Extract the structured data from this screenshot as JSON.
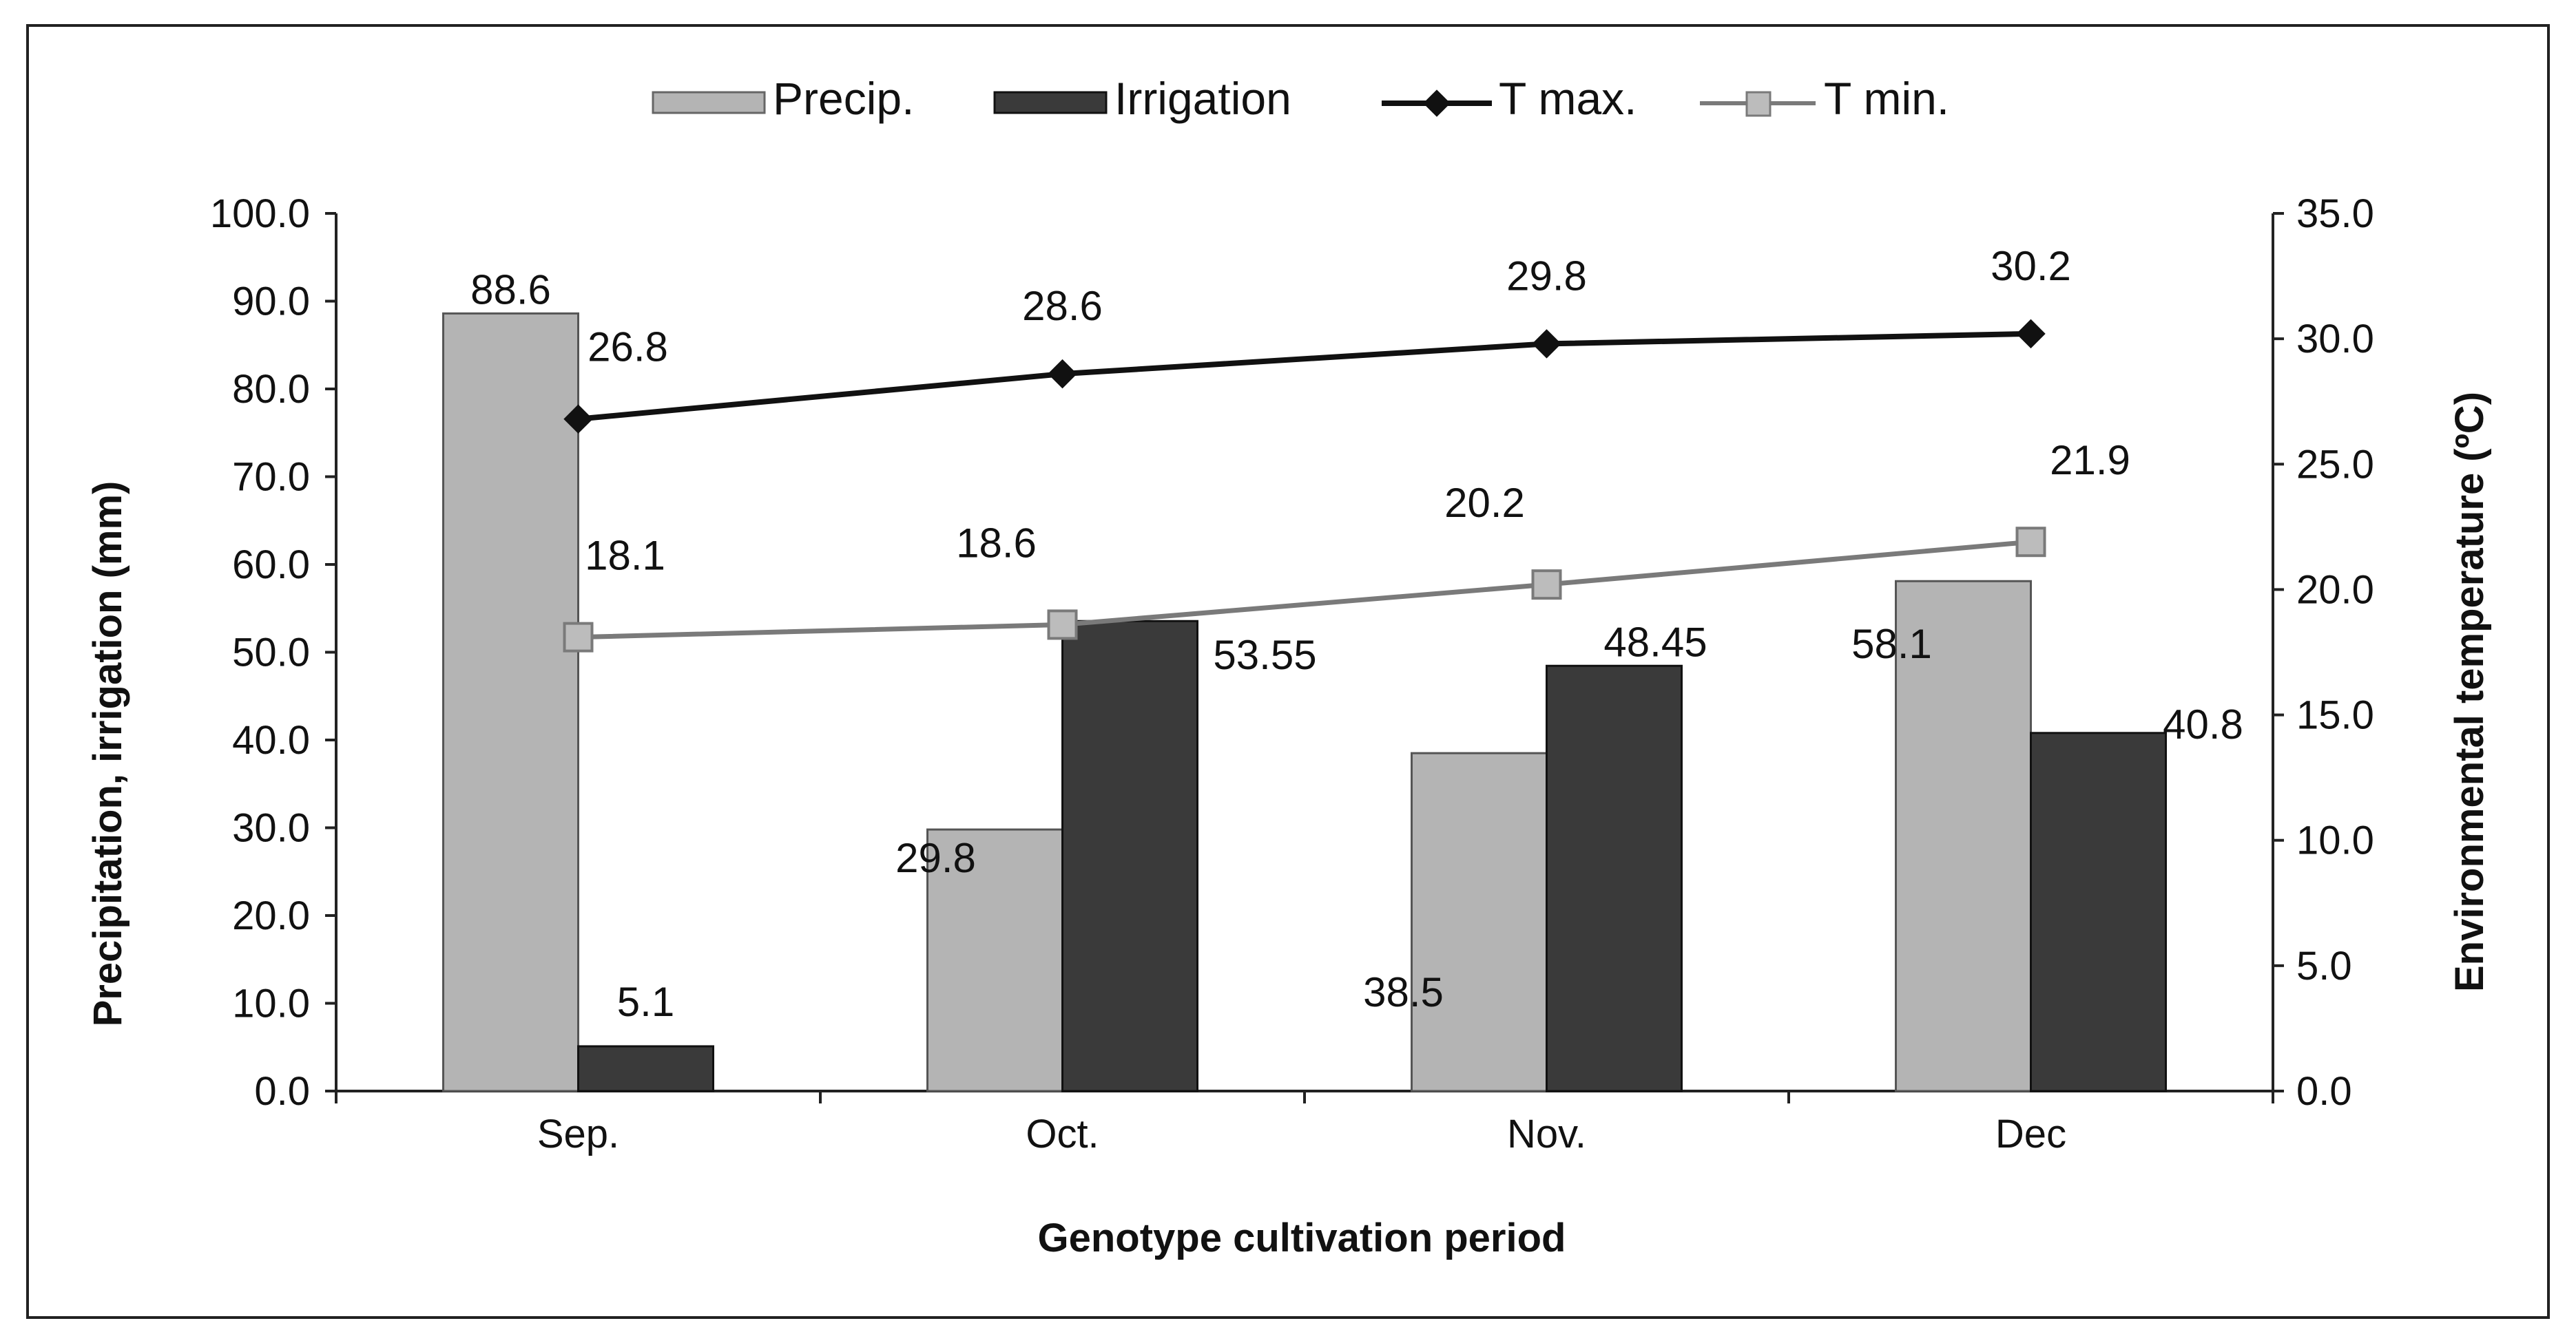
{
  "chart_data": {
    "type": "bar",
    "title": "",
    "categories": [
      "Sep.",
      "Oct.",
      "Nov.",
      "Dec"
    ],
    "xlabel": "Genotype cultivation period",
    "ylabel": "Precipitation, irrigation (mm)",
    "y2label": "Environmental temperature (ºC)",
    "ylim": [
      0,
      100
    ],
    "y2lim": [
      0,
      35
    ],
    "yticks": [
      "0.0",
      "10.0",
      "20.0",
      "30.0",
      "40.0",
      "50.0",
      "60.0",
      "70.0",
      "80.0",
      "90.0",
      "100.0"
    ],
    "y2ticks": [
      "0.0",
      "5.0",
      "10.0",
      "15.0",
      "20.0",
      "25.0",
      "30.0",
      "35.0"
    ],
    "legend_position": "top",
    "series": [
      {
        "name": "Precip.",
        "kind": "bar",
        "axis": "left",
        "color": "#b4b4b4",
        "values": [
          88.6,
          29.8,
          38.5,
          58.1
        ],
        "labels": [
          "88.6",
          "29.8",
          "38.5",
          "58.1"
        ]
      },
      {
        "name": "Irrigation",
        "kind": "bar",
        "axis": "left",
        "color": "#3a3a3a",
        "values": [
          5.1,
          53.55,
          48.45,
          40.8
        ],
        "labels": [
          "5.1",
          "53.55",
          "48.45",
          "40.8"
        ]
      },
      {
        "name": "T max.",
        "kind": "line",
        "axis": "right",
        "color": "#111111",
        "marker": "diamond",
        "values": [
          26.8,
          28.6,
          29.8,
          30.2
        ],
        "labels": [
          "26.8",
          "28.6",
          "29.8",
          "30.2"
        ]
      },
      {
        "name": "T min.",
        "kind": "line",
        "axis": "right",
        "color": "#7a7a7a",
        "marker": "square",
        "values": [
          18.1,
          18.6,
          20.2,
          21.9
        ],
        "labels": [
          "18.1",
          "18.6",
          "20.2",
          "21.9"
        ]
      }
    ]
  }
}
